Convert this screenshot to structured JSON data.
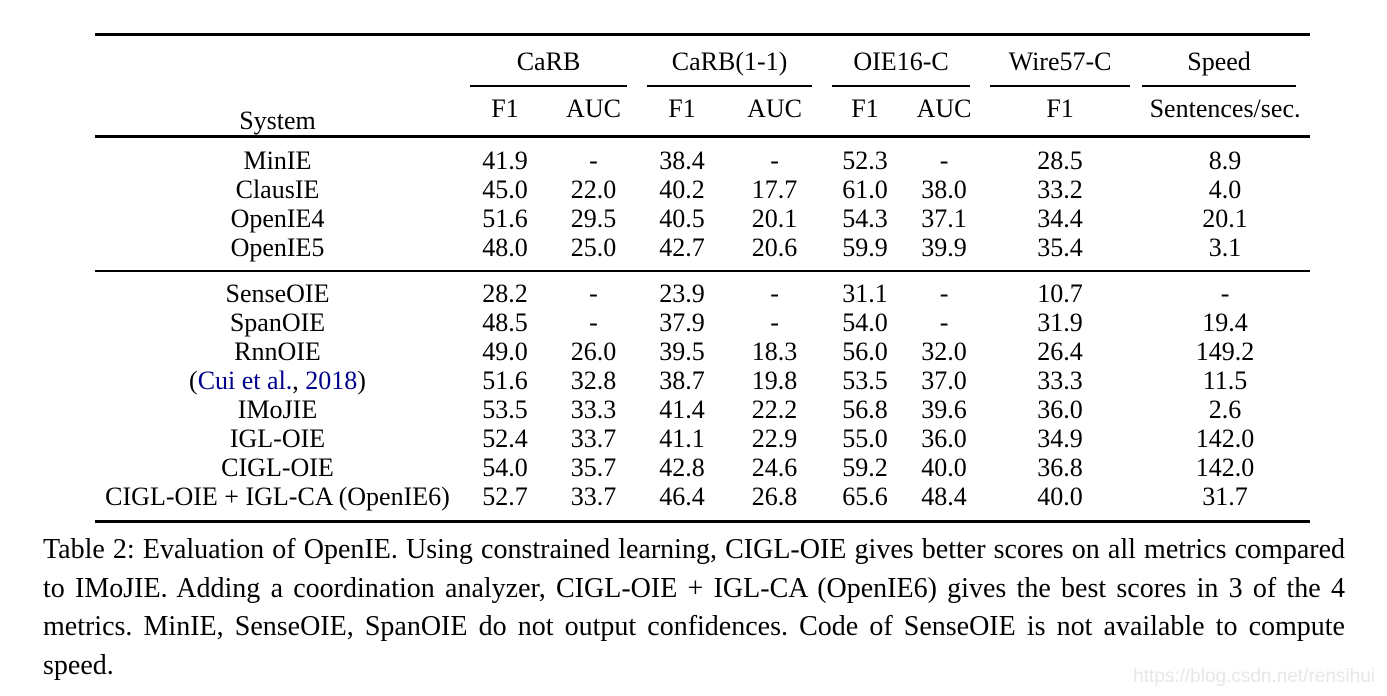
{
  "colors": {
    "citation_blue": "#00008B",
    "watermark_gray": "#e7e7e7",
    "rule_black": "#000000"
  },
  "table": {
    "type": "table",
    "groups": [
      "System",
      "CaRB",
      "CaRB(1-1)",
      "OIE16-C",
      "Wire57-C",
      "Speed"
    ],
    "subheaders": [
      "F1",
      "AUC",
      "F1",
      "AUC",
      "F1",
      "AUC",
      "F1",
      "Sentences/sec."
    ],
    "rows": [
      {
        "system": "MinIE",
        "values": [
          "41.9",
          "-",
          "38.4",
          "-",
          "52.3",
          "-",
          "28.5",
          "8.9"
        ],
        "bold": []
      },
      {
        "system": "ClausIE",
        "values": [
          "45.0",
          "22.0",
          "40.2",
          "17.7",
          "61.0",
          "38.0",
          "33.2",
          "4.0"
        ],
        "bold": []
      },
      {
        "system": "OpenIE4",
        "values": [
          "51.6",
          "29.5",
          "40.5",
          "20.1",
          "54.3",
          "37.1",
          "34.4",
          "20.1"
        ],
        "bold": []
      },
      {
        "system": "OpenIE5",
        "values": [
          "48.0",
          "25.0",
          "42.7",
          "20.6",
          "59.9",
          "39.9",
          "35.4",
          "3.1"
        ],
        "bold": [],
        "pad_b": true
      },
      {
        "system": "SenseOIE",
        "values": [
          "28.2",
          "-",
          "23.9",
          "-",
          "31.1",
          "-",
          "10.7",
          "-"
        ],
        "bold": [],
        "sep": true
      },
      {
        "system": "SpanOIE",
        "values": [
          "48.5",
          "-",
          "37.9",
          "-",
          "54.0",
          "-",
          "31.9",
          "19.4"
        ],
        "bold": []
      },
      {
        "system": "RnnOIE",
        "values": [
          "49.0",
          "26.0",
          "39.5",
          "18.3",
          "56.0",
          "32.0",
          "26.4",
          "149.2"
        ],
        "bold": [
          7
        ]
      },
      {
        "system": "(Cui et al., 2018)",
        "system_parts": [
          {
            "text": "(",
            "link": false
          },
          {
            "text": "Cui et al.",
            "link": true
          },
          {
            "text": ", ",
            "link": false
          },
          {
            "text": "2018",
            "link": true
          },
          {
            "text": ")",
            "link": false
          }
        ],
        "values": [
          "51.6",
          "32.8",
          "38.7",
          "19.8",
          "53.5",
          "37.0",
          "33.3",
          "11.5"
        ],
        "bold": []
      },
      {
        "system": "IMoJIE",
        "values": [
          "53.5",
          "33.3",
          "41.4",
          "22.2",
          "56.8",
          "39.6",
          "36.0",
          "2.6"
        ],
        "bold": []
      },
      {
        "system": "IGL-OIE",
        "values": [
          "52.4",
          "33.7",
          "41.1",
          "22.9",
          "55.0",
          "36.0",
          "34.9",
          "142.0"
        ],
        "bold": []
      },
      {
        "system": "CIGL-OIE",
        "values": [
          "54.0",
          "35.7",
          "42.8",
          "24.6",
          "59.2",
          "40.0",
          "36.8",
          "142.0"
        ],
        "bold": [
          0,
          1
        ]
      },
      {
        "system": "CIGL-OIE + IGL-CA (OpenIE6)",
        "values": [
          "52.7",
          "33.7",
          "46.4",
          "26.8",
          "65.6",
          "48.4",
          "40.0",
          "31.7"
        ],
        "bold": [
          2,
          3,
          4,
          5,
          6
        ],
        "last": true
      }
    ]
  },
  "caption": {
    "lines": [
      "Table 2: Evaluation of OpenIE. Using constrained learning, CIGL-OIE gives better scores on all metrics compared",
      "to IMoJIE. Adding a coordination analyzer, CIGL-OIE + IGL-CA (OpenIE6) gives the best scores in 3 of the 4",
      "metrics.  MinIE, SenseOIE, SpanOIE do not output confidences.  Code of SenseOIE is not available to compute",
      "speed."
    ]
  },
  "watermark": "https://blog.csdn.net/rensihui"
}
